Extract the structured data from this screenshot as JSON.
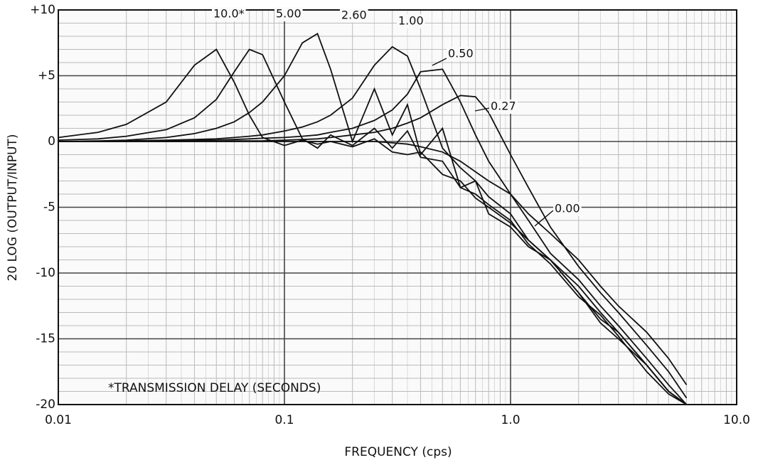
{
  "chart_data": {
    "type": "line",
    "xlabel": "FREQUENCY (cps)",
    "ylabel": "20 LOG (OUTPUT/INPUT)",
    "annotation": "*TRANSMISSION DELAY (SECONDS)",
    "xscale": "log",
    "grid": true,
    "minor_grid": true,
    "xlim": [
      0.01,
      10
    ],
    "ylim": [
      -20,
      10
    ],
    "xticks": [
      0.01,
      0.1,
      {
        "value": 1,
        "label": "1.0"
      },
      {
        "value": 10,
        "label": "10.0"
      }
    ],
    "yticks": [
      {
        "value": 10,
        "label": "+10"
      },
      {
        "value": 5,
        "label": "+5"
      },
      0,
      -5,
      -10,
      -15,
      -20
    ],
    "x": [
      0.01,
      0.015,
      0.02,
      0.03,
      0.04,
      0.05,
      0.06,
      0.07,
      0.08,
      0.1,
      0.12,
      0.14,
      0.16,
      0.2,
      0.25,
      0.3,
      0.35,
      0.4,
      0.5,
      0.6,
      0.7,
      0.8,
      1,
      1.2,
      1.5,
      2,
      2.5,
      3,
      4,
      5,
      6
    ],
    "series": [
      {
        "name": "10.0*",
        "color": "#111111",
        "values": [
          0.3,
          0.7,
          1.3,
          3.0,
          5.8,
          7.0,
          4.5,
          2.0,
          0.3,
          -0.3,
          0.1,
          -0.2,
          0,
          -0.4,
          0.2,
          -0.8,
          -1.0,
          -0.8,
          -2.5,
          -3.0,
          -4.3,
          -5.0,
          -6.2,
          -7.5,
          -9.0,
          -11.5,
          -13.5,
          -14.5,
          -17,
          -19,
          -20
        ]
      },
      {
        "name": "5.00",
        "color": "#111111",
        "values": [
          0.1,
          0.2,
          0.4,
          0.9,
          1.8,
          3.2,
          5.3,
          7.0,
          6.6,
          3.0,
          0.2,
          -0.5,
          0.5,
          -0.3,
          1.0,
          -0.5,
          0.8,
          -1.2,
          -1.5,
          -3.5,
          -4.0,
          -4.8,
          -6.0,
          -7.8,
          -9.3,
          -11.8,
          -13.2,
          -14.8,
          -17.5,
          -19.2,
          -20
        ]
      },
      {
        "name": "2.60",
        "color": "#111111",
        "values": [
          0,
          0.05,
          0.1,
          0.3,
          0.6,
          1.0,
          1.5,
          2.2,
          3.0,
          5.0,
          7.5,
          8.2,
          5.5,
          0.0,
          4.0,
          0.5,
          2.8,
          -1.0,
          1.0,
          -3.5,
          -3.0,
          -5.5,
          -6.5,
          -8.0,
          -9.0,
          -11.5,
          -13.8,
          -15.0,
          -17.0,
          -19.0,
          -20
        ]
      },
      {
        "name": "1.00",
        "color": "#111111",
        "values": [
          0,
          0,
          0.05,
          0.1,
          0.15,
          0.2,
          0.3,
          0.4,
          0.5,
          0.8,
          1.1,
          1.5,
          2.0,
          3.3,
          5.8,
          7.2,
          6.5,
          4.0,
          -0.5,
          -2.0,
          -3.0,
          -4.2,
          -5.5,
          -7.5,
          -9.0,
          -11.0,
          -13.0,
          -14.5,
          -17.0,
          -19.0,
          -20
        ]
      },
      {
        "name": "0.50",
        "color": "#111111",
        "values": [
          0,
          0,
          0,
          0.05,
          0.1,
          0.1,
          0.15,
          0.2,
          0.25,
          0.3,
          0.4,
          0.5,
          0.7,
          1.0,
          1.6,
          2.4,
          3.6,
          5.3,
          5.5,
          3.0,
          0.5,
          -1.5,
          -4.0,
          -6.0,
          -8.5,
          -10.5,
          -12.5,
          -14.0,
          -16.5,
          -18.5,
          -20
        ]
      },
      {
        "name": "0.27",
        "color": "#111111",
        "values": [
          0,
          0,
          0,
          0,
          0,
          0,
          0.05,
          0.05,
          0.05,
          0.1,
          0.15,
          0.2,
          0.3,
          0.5,
          0.7,
          1.0,
          1.4,
          1.8,
          2.8,
          3.5,
          3.4,
          2.2,
          -1.0,
          -3.5,
          -6.5,
          -9.5,
          -11.5,
          -13.0,
          -15.5,
          -17.5,
          -19.5
        ]
      },
      {
        "name": "0.00",
        "color": "#111111",
        "values": [
          0,
          0,
          0,
          0,
          0,
          0,
          0,
          0,
          0,
          0,
          0,
          0,
          0,
          0,
          0,
          -0.1,
          -0.2,
          -0.4,
          -0.8,
          -1.5,
          -2.3,
          -3.0,
          -4.0,
          -5.5,
          -7.0,
          -9.0,
          -11.0,
          -12.5,
          -14.5,
          -16.5,
          -18.5
        ]
      }
    ]
  }
}
